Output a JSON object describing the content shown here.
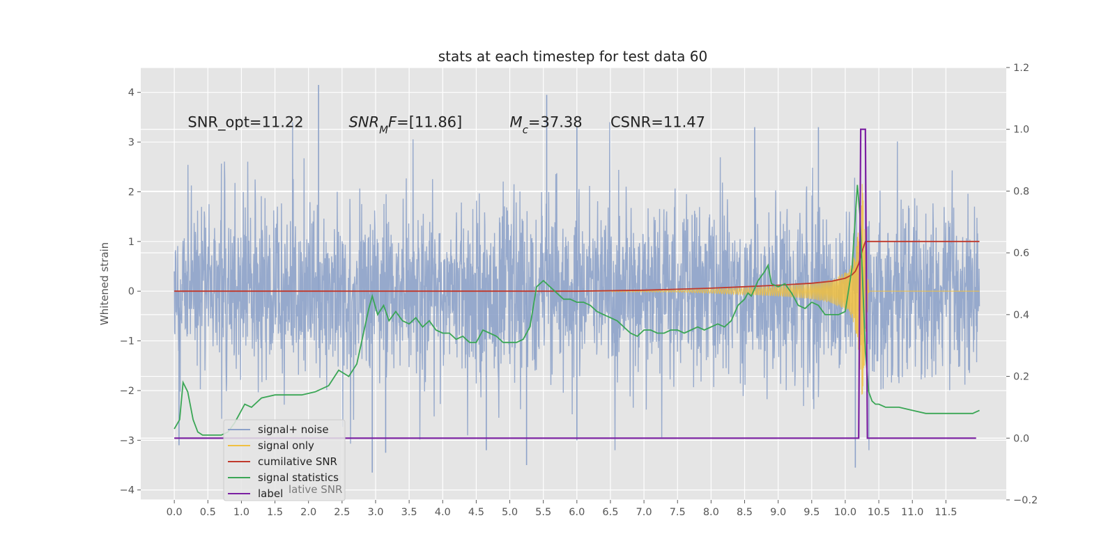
{
  "chart_data": {
    "type": "line",
    "title": "stats at each timestep for test data 60",
    "ylabel": "Whitened strain",
    "y2label": "",
    "xlabel": "",
    "xlim": [
      -0.5,
      12.4
    ],
    "ylim": [
      -4.2,
      4.5
    ],
    "y2lim": [
      -0.2,
      1.2
    ],
    "xticks": [
      0.0,
      0.5,
      1.0,
      1.5,
      2.0,
      2.5,
      3.0,
      3.5,
      4.0,
      4.5,
      5.0,
      5.5,
      6.0,
      6.5,
      7.0,
      7.5,
      8.0,
      8.5,
      9.0,
      9.5,
      10.0,
      10.5,
      11.0,
      11.5
    ],
    "xtick_labels": [
      "0.0",
      "0.5",
      "1.0",
      "1.5",
      "2.0",
      "2.5",
      "3.0",
      "3.5",
      "4.0",
      "4.5",
      "5.0",
      "5.5",
      "6.0",
      "6.5",
      "7.0",
      "7.5",
      "8.0",
      "8.5",
      "9.0",
      "9.5",
      "10.0",
      "10.5",
      "11.0",
      "11.5"
    ],
    "yticks": [
      4,
      3,
      2,
      1,
      0,
      -1,
      -2,
      -3,
      -4
    ],
    "ytick_labels": [
      "4",
      "3",
      "2",
      "1",
      "0",
      "−1",
      "−2",
      "−3",
      "−4"
    ],
    "y2ticks": [
      1.2,
      1.0,
      0.8,
      0.6,
      0.4,
      0.2,
      0.0,
      -0.2
    ],
    "y2tick_labels": [
      "1.2",
      "1.0",
      "0.8",
      "0.6",
      "0.4",
      "0.2",
      "0.0",
      "−0.2"
    ],
    "grid": true,
    "annotations": [
      {
        "parts": [
          {
            "t": "SNR_opt=11.22",
            "i": false
          }
        ],
        "x": 0.2,
        "y": 3.3
      },
      {
        "parts": [
          {
            "t": "SNR",
            "i": true
          },
          {
            "t": "M",
            "i": true,
            "sub": true
          },
          {
            "t": "F",
            "i": true
          },
          {
            "t": "=[11.86]",
            "i": false
          }
        ],
        "x": 2.6,
        "y": 3.3
      },
      {
        "parts": [
          {
            "t": "M",
            "i": true
          },
          {
            "t": "c",
            "i": true,
            "sub": true
          },
          {
            "t": "=37.38",
            "i": false
          }
        ],
        "x": 5.0,
        "y": 3.3
      },
      {
        "parts": [
          {
            "t": "CSNR=11.47",
            "i": false
          }
        ],
        "x": 6.5,
        "y": 3.3
      }
    ],
    "legend": {
      "location": "lower-left",
      "entries": [
        {
          "label": "signal+ noise",
          "color": "#8da2c9"
        },
        {
          "label": "signal only",
          "color": "#f0c040"
        },
        {
          "label": "cumilative SNR",
          "color": "#c0392b"
        },
        {
          "label": "signal statistics",
          "color": "#3aa655"
        },
        {
          "label": "label",
          "color": "#7b1fa2"
        }
      ],
      "ghost_text": "lative SNR"
    },
    "series": [
      {
        "name": "signal+ noise",
        "axis": "left",
        "color": "#8da2c9",
        "note": "dense whitened noise trace, approx. ±1 sigma, spikes up to ~4.1",
        "x_range": [
          0.0,
          12.0
        ],
        "spikes": [
          [
            2.15,
            4.15
          ],
          [
            5.55,
            3.95
          ],
          [
            6.0,
            3.3
          ],
          [
            6.0,
            -3.0
          ],
          [
            2.95,
            -3.65
          ],
          [
            5.25,
            -3.5
          ],
          [
            10.15,
            -3.55
          ],
          [
            4.65,
            -3.2
          ],
          [
            3.15,
            -3.25
          ],
          [
            0.07,
            -3.1
          ],
          [
            8.65,
            3.3
          ],
          [
            9.6,
            3.3
          ],
          [
            10.3,
            3.2
          ]
        ]
      },
      {
        "name": "signal only",
        "axis": "left",
        "color": "#f0c040",
        "note": "chirp envelope growing toward merger",
        "x": [
          6.5,
          7.5,
          8.0,
          8.5,
          9.0,
          9.5,
          9.8,
          10.0,
          10.1,
          10.15,
          10.2,
          10.25,
          10.3,
          10.35
        ],
        "amplitude": [
          0.01,
          0.02,
          0.04,
          0.07,
          0.1,
          0.16,
          0.24,
          0.38,
          0.55,
          0.8,
          1.4,
          2.2,
          1.2,
          0.0
        ]
      },
      {
        "name": "cumilative SNR",
        "axis": "left",
        "color": "#c0392b",
        "x": [
          0.0,
          3.0,
          5.0,
          6.0,
          6.5,
          7.0,
          7.5,
          8.0,
          8.5,
          9.0,
          9.5,
          9.8,
          10.0,
          10.1,
          10.15,
          10.2,
          10.25,
          10.3,
          10.35,
          12.0
        ],
        "y": [
          0.0,
          0.0,
          0.0,
          0.0,
          0.01,
          0.02,
          0.04,
          0.06,
          0.09,
          0.12,
          0.16,
          0.2,
          0.26,
          0.33,
          0.4,
          0.55,
          0.8,
          1.0,
          1.0,
          1.0
        ]
      },
      {
        "name": "signal statistics",
        "axis": "right",
        "color": "#3aa655",
        "x": [
          0.0,
          0.08,
          0.13,
          0.2,
          0.28,
          0.35,
          0.42,
          0.5,
          0.6,
          0.7,
          0.8,
          0.9,
          1.0,
          1.05,
          1.15,
          1.3,
          1.5,
          1.7,
          1.9,
          2.1,
          2.3,
          2.45,
          2.6,
          2.72,
          2.8,
          2.9,
          2.95,
          3.03,
          3.12,
          3.2,
          3.3,
          3.4,
          3.5,
          3.6,
          3.7,
          3.8,
          3.9,
          4.0,
          4.1,
          4.2,
          4.3,
          4.4,
          4.5,
          4.6,
          4.7,
          4.8,
          4.9,
          5.0,
          5.1,
          5.2,
          5.3,
          5.4,
          5.5,
          5.6,
          5.7,
          5.8,
          5.9,
          6.0,
          6.1,
          6.2,
          6.3,
          6.4,
          6.5,
          6.6,
          6.7,
          6.8,
          6.9,
          7.0,
          7.1,
          7.2,
          7.3,
          7.4,
          7.5,
          7.6,
          7.7,
          7.8,
          7.9,
          8.0,
          8.1,
          8.2,
          8.3,
          8.4,
          8.5,
          8.55,
          8.6,
          8.7,
          8.8,
          8.85,
          8.9,
          9.0,
          9.1,
          9.2,
          9.3,
          9.4,
          9.5,
          9.6,
          9.7,
          9.8,
          9.9,
          10.0,
          10.1,
          10.18,
          10.22,
          10.26,
          10.3,
          10.35,
          10.4,
          10.45,
          10.5,
          10.6,
          10.8,
          11.0,
          11.2,
          11.4,
          11.6,
          11.8,
          11.9,
          12.0
        ],
        "y": [
          0.03,
          0.06,
          0.18,
          0.15,
          0.06,
          0.02,
          0.01,
          0.01,
          0.01,
          0.01,
          0.02,
          0.05,
          0.09,
          0.11,
          0.1,
          0.13,
          0.14,
          0.14,
          0.14,
          0.15,
          0.17,
          0.22,
          0.2,
          0.24,
          0.32,
          0.42,
          0.46,
          0.4,
          0.43,
          0.38,
          0.41,
          0.38,
          0.37,
          0.39,
          0.36,
          0.38,
          0.35,
          0.34,
          0.34,
          0.32,
          0.33,
          0.31,
          0.31,
          0.35,
          0.34,
          0.33,
          0.31,
          0.31,
          0.31,
          0.32,
          0.36,
          0.49,
          0.51,
          0.49,
          0.47,
          0.45,
          0.45,
          0.44,
          0.44,
          0.43,
          0.41,
          0.4,
          0.39,
          0.38,
          0.36,
          0.34,
          0.33,
          0.35,
          0.35,
          0.34,
          0.34,
          0.35,
          0.35,
          0.34,
          0.35,
          0.36,
          0.35,
          0.36,
          0.37,
          0.36,
          0.38,
          0.43,
          0.45,
          0.47,
          0.46,
          0.51,
          0.54,
          0.56,
          0.5,
          0.49,
          0.5,
          0.47,
          0.43,
          0.42,
          0.44,
          0.43,
          0.4,
          0.4,
          0.4,
          0.41,
          0.55,
          0.82,
          0.72,
          0.5,
          0.28,
          0.15,
          0.12,
          0.11,
          0.11,
          0.1,
          0.1,
          0.09,
          0.08,
          0.08,
          0.08,
          0.08,
          0.08,
          0.09
        ]
      },
      {
        "name": "label",
        "axis": "right",
        "color": "#7b1fa2",
        "x": [
          0.0,
          10.2,
          10.23,
          10.3,
          10.33,
          11.95
        ],
        "y": [
          0.0,
          0.0,
          1.0,
          1.0,
          0.0,
          0.0
        ]
      }
    ]
  }
}
